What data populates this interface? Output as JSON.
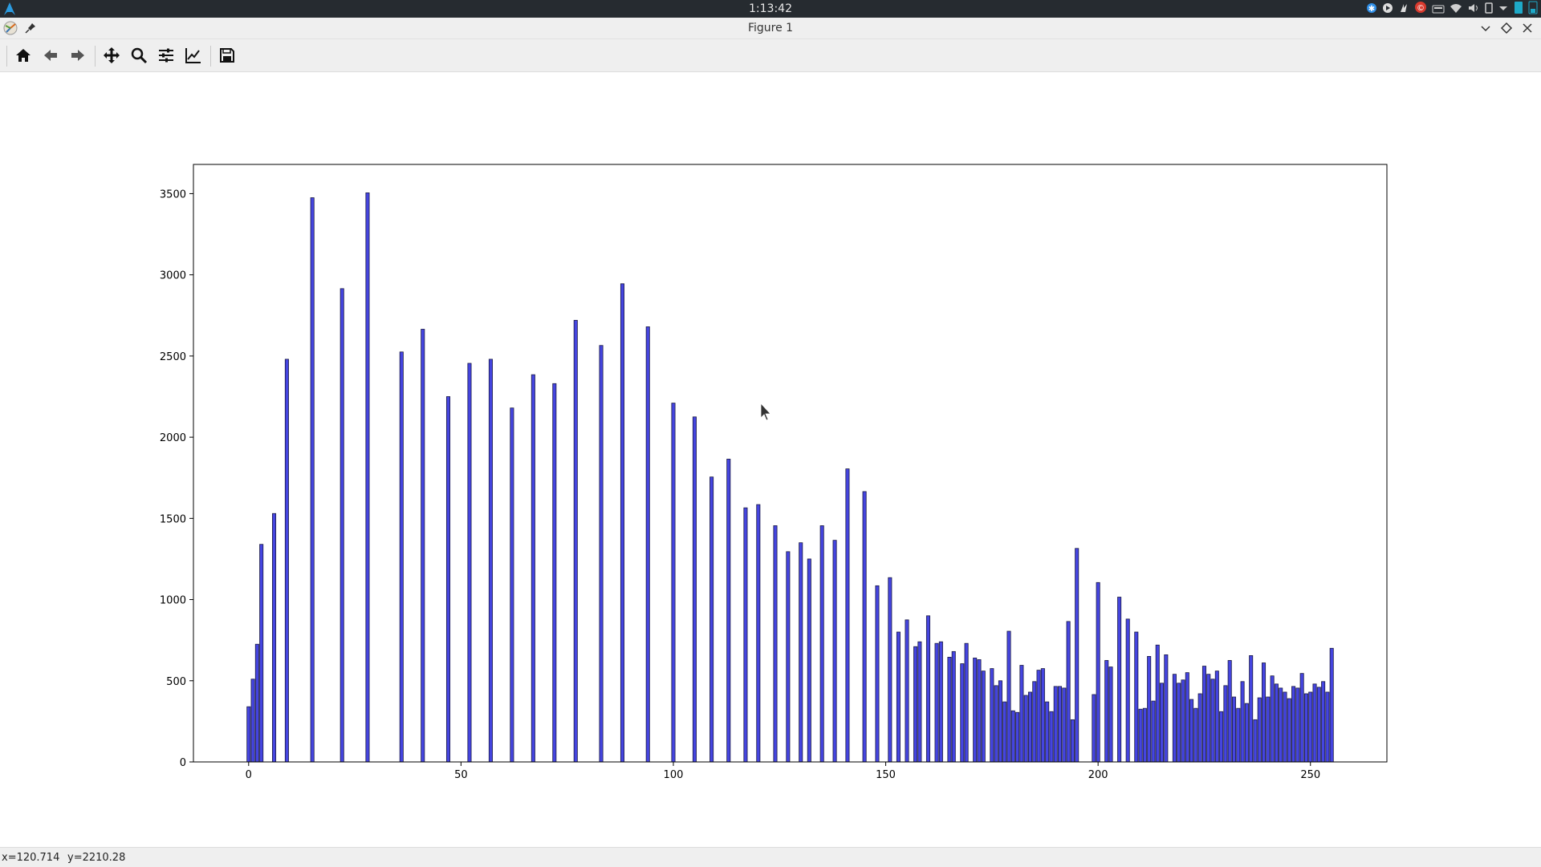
{
  "topbar": {
    "clock": "1:13:42",
    "tray_icons": [
      "bluetooth-icon",
      "media-player-icon",
      "flameshot-icon",
      "notification-badge-icon",
      "keyboard-icon",
      "wifi-icon",
      "volume-icon",
      "phone-icon",
      "dropdown-icon",
      "battery-icon",
      "battery-icon-2"
    ]
  },
  "window": {
    "title": "Figure 1"
  },
  "toolbar": {
    "buttons": [
      {
        "name": "home-button",
        "icon": "home-icon"
      },
      {
        "name": "back-button",
        "icon": "arrow-left-icon"
      },
      {
        "name": "forward-button",
        "icon": "arrow-right-icon"
      },
      {
        "name": "pan-button",
        "icon": "move-icon"
      },
      {
        "name": "zoom-button",
        "icon": "zoom-icon"
      },
      {
        "name": "subplots-button",
        "icon": "sliders-icon"
      },
      {
        "name": "customize-button",
        "icon": "line-chart-icon"
      },
      {
        "name": "save-button",
        "icon": "save-icon"
      }
    ]
  },
  "status": {
    "x": "x=120.714",
    "y": "y=2210.28"
  },
  "chart_data": {
    "type": "bar",
    "title": "",
    "xlabel": "",
    "ylabel": "",
    "xlim": [
      -13,
      268
    ],
    "ylim": [
      0,
      3680
    ],
    "xticks": [
      0,
      50,
      100,
      150,
      200,
      250
    ],
    "yticks": [
      0,
      500,
      1000,
      1500,
      2000,
      2500,
      3000,
      3500
    ],
    "bar_color": "#4545e0",
    "edge_color": "#1a1a44",
    "grid": false,
    "bars": [
      [
        0,
        340
      ],
      [
        1,
        510
      ],
      [
        2,
        725
      ],
      [
        3,
        1340
      ],
      [
        6,
        1530
      ],
      [
        9,
        2480
      ],
      [
        15,
        3475
      ],
      [
        22,
        2915
      ],
      [
        28,
        3505
      ],
      [
        36,
        2525
      ],
      [
        41,
        2665
      ],
      [
        47,
        2250
      ],
      [
        52,
        2455
      ],
      [
        57,
        2480
      ],
      [
        62,
        2180
      ],
      [
        67,
        2385
      ],
      [
        72,
        2330
      ],
      [
        77,
        2720
      ],
      [
        83,
        2565
      ],
      [
        88,
        2945
      ],
      [
        94,
        2680
      ],
      [
        100,
        2210
      ],
      [
        105,
        2125
      ],
      [
        109,
        1755
      ],
      [
        113,
        1865
      ],
      [
        117,
        1565
      ],
      [
        120,
        1585
      ],
      [
        124,
        1455
      ],
      [
        127,
        1295
      ],
      [
        130,
        1350
      ],
      [
        132,
        1250
      ],
      [
        135,
        1455
      ],
      [
        138,
        1365
      ],
      [
        141,
        1805
      ],
      [
        145,
        1665
      ],
      [
        148,
        1085
      ],
      [
        151,
        1135
      ],
      [
        153,
        800
      ],
      [
        155,
        875
      ],
      [
        157,
        710
      ],
      [
        158,
        740
      ],
      [
        160,
        900
      ],
      [
        162,
        730
      ],
      [
        163,
        740
      ],
      [
        165,
        645
      ],
      [
        166,
        680
      ],
      [
        168,
        605
      ],
      [
        169,
        730
      ],
      [
        171,
        640
      ],
      [
        172,
        630
      ],
      [
        173,
        560
      ],
      [
        175,
        575
      ],
      [
        176,
        470
      ],
      [
        177,
        500
      ],
      [
        178,
        370
      ],
      [
        179,
        805
      ],
      [
        180,
        315
      ],
      [
        181,
        305
      ],
      [
        182,
        595
      ],
      [
        183,
        410
      ],
      [
        184,
        430
      ],
      [
        185,
        495
      ],
      [
        186,
        565
      ],
      [
        187,
        575
      ],
      [
        188,
        370
      ],
      [
        189,
        310
      ],
      [
        190,
        465
      ],
      [
        191,
        465
      ],
      [
        192,
        455
      ],
      [
        193,
        865
      ],
      [
        194,
        260
      ],
      [
        195,
        1315
      ],
      [
        199,
        415
      ],
      [
        200,
        1105
      ],
      [
        202,
        625
      ],
      [
        203,
        585
      ],
      [
        205,
        1015
      ],
      [
        207,
        880
      ],
      [
        209,
        800
      ],
      [
        210,
        325
      ],
      [
        211,
        330
      ],
      [
        212,
        650
      ],
      [
        213,
        375
      ],
      [
        214,
        720
      ],
      [
        215,
        485
      ],
      [
        216,
        660
      ],
      [
        218,
        540
      ],
      [
        219,
        485
      ],
      [
        220,
        505
      ],
      [
        221,
        550
      ],
      [
        222,
        385
      ],
      [
        223,
        330
      ],
      [
        224,
        420
      ],
      [
        225,
        590
      ],
      [
        226,
        540
      ],
      [
        227,
        510
      ],
      [
        228,
        560
      ],
      [
        229,
        310
      ],
      [
        230,
        470
      ],
      [
        231,
        625
      ],
      [
        232,
        400
      ],
      [
        233,
        330
      ],
      [
        234,
        495
      ],
      [
        235,
        360
      ],
      [
        236,
        655
      ],
      [
        237,
        260
      ],
      [
        238,
        395
      ],
      [
        239,
        610
      ],
      [
        240,
        400
      ],
      [
        241,
        530
      ],
      [
        242,
        480
      ],
      [
        243,
        455
      ],
      [
        244,
        430
      ],
      [
        245,
        390
      ],
      [
        246,
        465
      ],
      [
        247,
        455
      ],
      [
        248,
        545
      ],
      [
        249,
        420
      ],
      [
        250,
        430
      ],
      [
        251,
        480
      ],
      [
        252,
        460
      ],
      [
        253,
        495
      ],
      [
        254,
        430
      ],
      [
        255,
        700
      ]
    ]
  }
}
